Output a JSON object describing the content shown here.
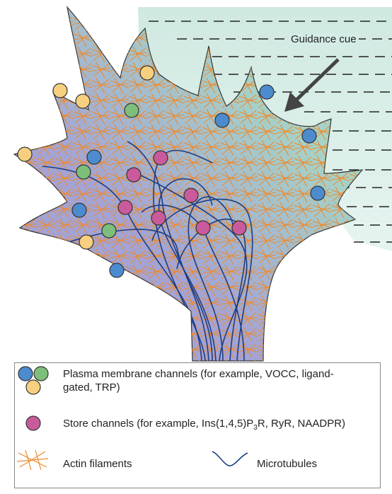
{
  "annotation": "Guidance cue",
  "legend": {
    "plasma_membrane": "Plasma membrane channels (for example, VOCC, ligand-gated, TRP)",
    "store": {
      "before": "Store channels (for example, Ins(1,4,5)P",
      "sub": "3",
      "after": "R, RyR, NAADPR)"
    },
    "actin": "Actin filaments",
    "microtubules": "Microtubules"
  }
}
